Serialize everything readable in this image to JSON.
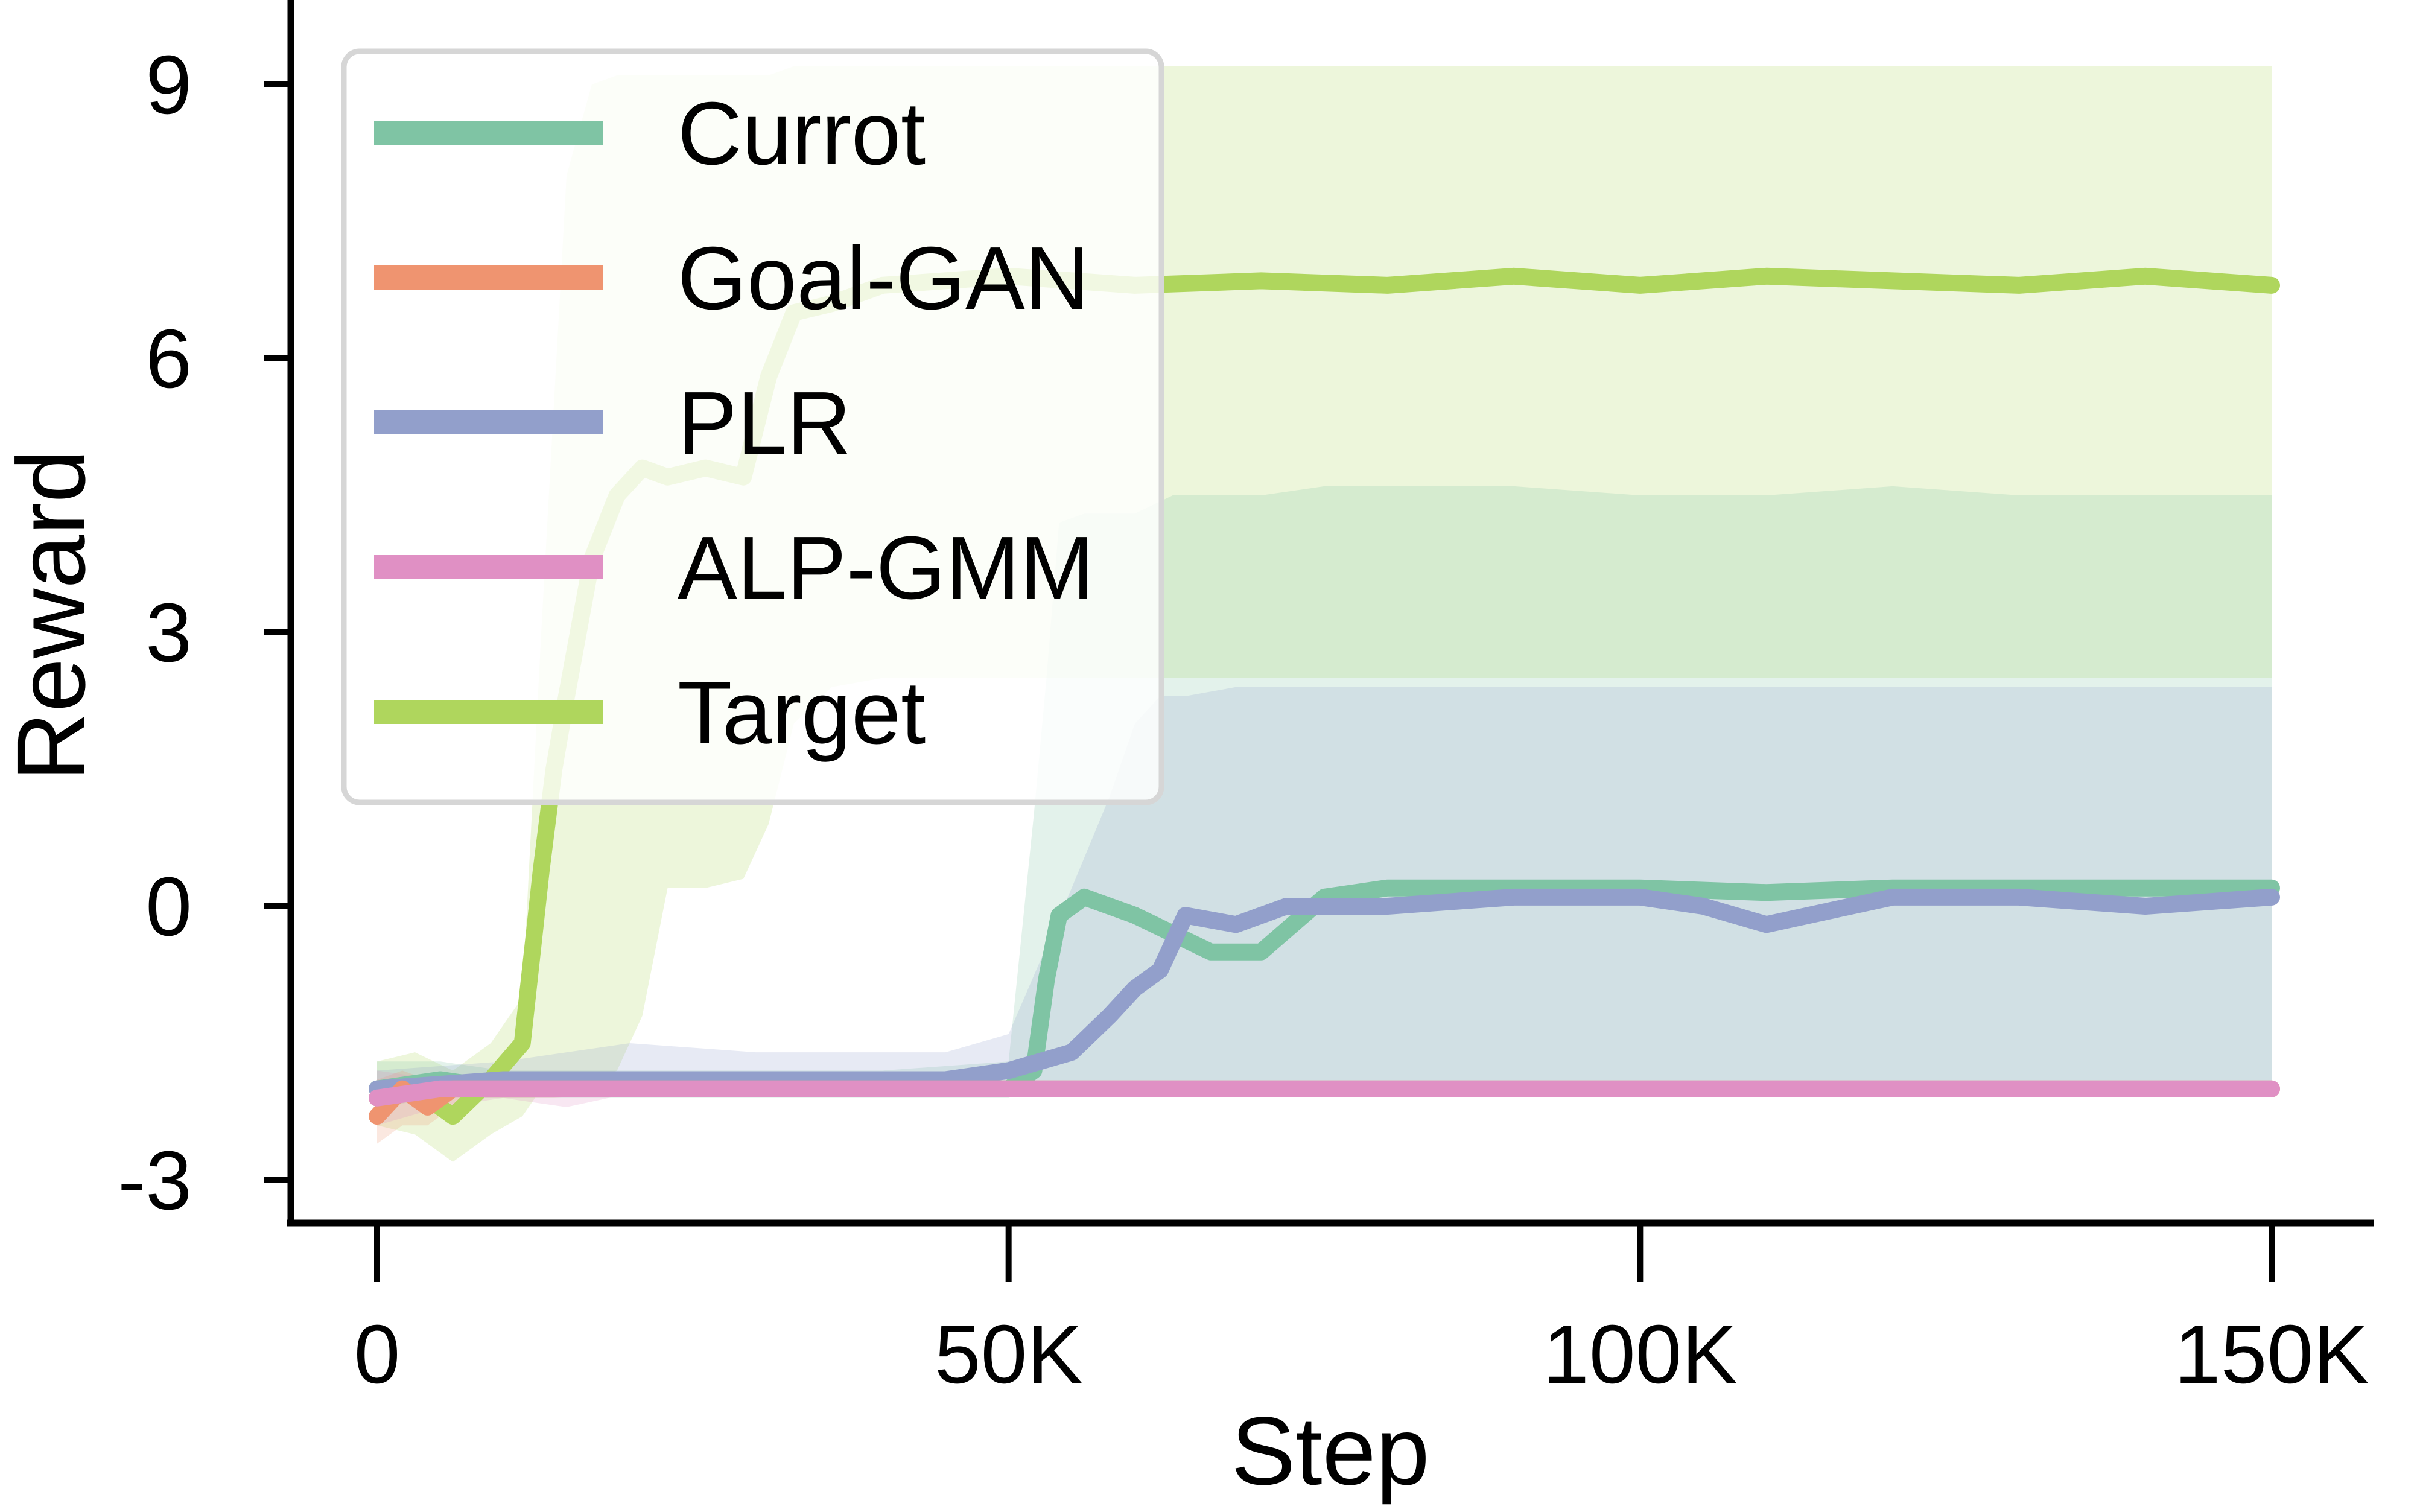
{
  "chart_data": {
    "type": "line",
    "xlabel": "Step",
    "ylabel": "Reward",
    "xlim": [
      -7000,
      157000
    ],
    "ylim": [
      -3.5,
      10
    ],
    "x_ticks": [
      {
        "value": 0,
        "label": "0"
      },
      {
        "value": 50000,
        "label": "50K"
      },
      {
        "value": 100000,
        "label": "100K"
      },
      {
        "value": 150000,
        "label": "150K"
      }
    ],
    "y_ticks": [
      {
        "value": -3,
        "label": "-3"
      },
      {
        "value": 0,
        "label": "0"
      },
      {
        "value": 3,
        "label": "3"
      },
      {
        "value": 6,
        "label": "6"
      },
      {
        "value": 9,
        "label": "9"
      }
    ],
    "grid": false,
    "legend_position": "top-left",
    "series": [
      {
        "name": "Currot",
        "color": "#7fc4a4",
        "x": [
          0,
          5000,
          10000,
          20000,
          40000,
          50000,
          52000,
          53000,
          54000,
          56000,
          60000,
          63000,
          66000,
          70000,
          75000,
          80000,
          90000,
          100000,
          110000,
          120000,
          130000,
          140000,
          150000
        ],
        "y": [
          -2.0,
          -1.9,
          -2.0,
          -2.0,
          -2.0,
          -2.0,
          -1.8,
          -0.8,
          -0.1,
          0.1,
          -0.1,
          -0.3,
          -0.5,
          -0.5,
          0.1,
          0.2,
          0.2,
          0.2,
          0.15,
          0.2,
          0.2,
          0.2,
          0.2
        ],
        "lower": [
          -2.2,
          -2.1,
          -2.1,
          -2.1,
          -2.1,
          -2.1,
          -2.0,
          -2.0,
          -2.0,
          -2.0,
          -2.0,
          -2.0,
          -2.0,
          -2.0,
          -2.0,
          -2.0,
          -2.0,
          -2.0,
          -2.0,
          -2.0,
          -2.0,
          -2.0,
          -2.0
        ],
        "upper": [
          -1.7,
          -1.7,
          -1.8,
          -1.8,
          -1.8,
          -1.7,
          1.0,
          2.5,
          4.2,
          4.3,
          4.3,
          4.5,
          4.5,
          4.5,
          4.6,
          4.6,
          4.6,
          4.5,
          4.5,
          4.6,
          4.5,
          4.5,
          4.5
        ]
      },
      {
        "name": "Goal-GAN",
        "color": "#ef9470",
        "x": [
          0,
          2000,
          4000,
          6000,
          8000,
          10000,
          14000,
          20000,
          50000,
          100000,
          150000
        ],
        "y": [
          -2.3,
          -2.0,
          -2.2,
          -2.0,
          -2.0,
          -2.0,
          -2.0,
          -2.0,
          -2.0,
          -2.0,
          -2.0
        ],
        "lower": [
          -2.6,
          -2.4,
          -2.4,
          -2.2,
          -2.1,
          -2.1,
          -2.1,
          -2.05,
          -2.05,
          -2.05,
          -2.05
        ],
        "upper": [
          -1.9,
          -1.8,
          -1.9,
          -1.9,
          -1.9,
          -1.9,
          -1.95,
          -1.95,
          -1.95,
          -1.95,
          -1.95
        ]
      },
      {
        "name": "PLR",
        "color": "#929fcb",
        "x": [
          0,
          10000,
          20000,
          30000,
          45000,
          50000,
          55000,
          58000,
          60000,
          62000,
          64000,
          68000,
          72000,
          80000,
          90000,
          100000,
          105000,
          110000,
          120000,
          130000,
          140000,
          150000
        ],
        "y": [
          -2.0,
          -1.9,
          -1.9,
          -1.9,
          -1.9,
          -1.8,
          -1.6,
          -1.2,
          -0.9,
          -0.7,
          -0.1,
          -0.2,
          0.0,
          0.0,
          0.1,
          0.1,
          0.0,
          -0.2,
          0.1,
          0.1,
          0.0,
          0.1
        ],
        "lower": [
          -2.1,
          -2.0,
          -2.0,
          -2.0,
          -2.0,
          -2.0,
          -2.0,
          -2.0,
          -2.0,
          -2.0,
          -2.0,
          -2.0,
          -2.0,
          -2.0,
          -2.0,
          -2.0,
          -2.0,
          -2.0,
          -2.0,
          -2.0,
          -2.0,
          -2.0
        ],
        "upper": [
          -1.8,
          -1.7,
          -1.5,
          -1.6,
          -1.6,
          -1.4,
          0.2,
          1.2,
          2.0,
          2.3,
          2.3,
          2.4,
          2.4,
          2.4,
          2.4,
          2.4,
          2.4,
          2.4,
          2.4,
          2.4,
          2.4,
          2.4
        ]
      },
      {
        "name": "ALP-GMM",
        "color": "#e090c4",
        "x": [
          0,
          5000,
          10000,
          15000,
          20000,
          50000,
          100000,
          150000
        ],
        "y": [
          -2.1,
          -2.0,
          -2.0,
          -2.0,
          -2.0,
          -2.0,
          -2.0,
          -2.0
        ],
        "lower": [
          -2.4,
          -2.2,
          -2.1,
          -2.2,
          -2.05,
          -2.05,
          -2.05,
          -2.05
        ],
        "upper": [
          -1.8,
          -1.9,
          -1.95,
          -1.9,
          -1.95,
          -1.95,
          -1.95,
          -1.95
        ]
      },
      {
        "name": "Target",
        "color": "#afd65d",
        "x": [
          0,
          3000,
          6000,
          9000,
          11500,
          13000,
          14000,
          15000,
          17000,
          19000,
          21000,
          23000,
          26000,
          29000,
          31000,
          33000,
          36000,
          40000,
          50000,
          60000,
          70000,
          80000,
          90000,
          100000,
          110000,
          120000,
          130000,
          140000,
          150000
        ],
        "y": [
          -2.1,
          -2.0,
          -2.3,
          -1.9,
          -1.5,
          0.4,
          1.5,
          2.3,
          3.8,
          4.5,
          4.8,
          4.7,
          4.8,
          4.7,
          5.8,
          6.5,
          6.6,
          6.8,
          6.9,
          6.8,
          6.85,
          6.8,
          6.9,
          6.8,
          6.9,
          6.85,
          6.8,
          6.9,
          6.8
        ],
        "lower": [
          -2.4,
          -2.5,
          -2.8,
          -2.5,
          -2.3,
          -2.0,
          -2.0,
          -2.0,
          -1.9,
          -1.8,
          -1.2,
          0.2,
          0.2,
          0.3,
          0.9,
          2.0,
          2.4,
          2.5,
          2.5,
          2.5,
          2.5,
          2.5,
          2.5,
          2.5,
          2.5,
          2.5,
          2.5,
          2.5,
          2.5
        ],
        "upper": [
          -1.7,
          -1.6,
          -1.8,
          -1.5,
          -1.0,
          3.0,
          5.5,
          8.0,
          9.0,
          9.1,
          9.1,
          9.1,
          9.1,
          9.1,
          9.1,
          9.2,
          9.2,
          9.2,
          9.2,
          9.2,
          9.2,
          9.2,
          9.2,
          9.2,
          9.2,
          9.2,
          9.2,
          9.2,
          9.2
        ]
      }
    ],
    "draw_order": [
      "Target",
      "Currot",
      "PLR",
      "Goal-GAN",
      "ALP-GMM"
    ]
  }
}
